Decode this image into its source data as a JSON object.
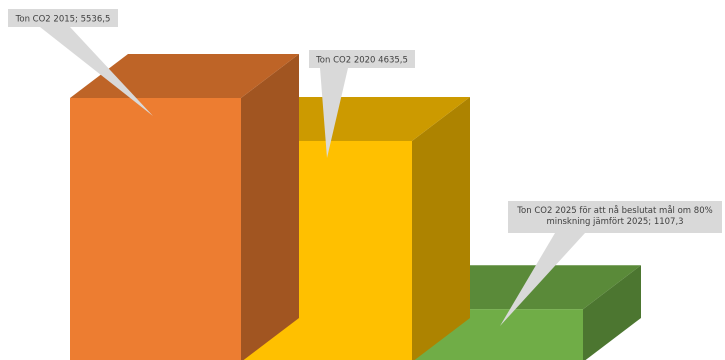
{
  "chart_data": {
    "type": "bar",
    "style": "3d-column",
    "categories": [
      "Ton CO2 2015",
      "Ton CO2 2020",
      "Ton CO2 2025 för att nå beslutat mål om 80% minskning jämfört 2025"
    ],
    "values": [
      5536.5,
      4635.5,
      1107.3
    ],
    "data_labels": [
      "Ton CO2 2015; 5536,5",
      "Ton CO2 2020 4635,5",
      "Ton CO2 2025 för att nå beslutat mål om 80% minskning jämfört 2025; 1107,3"
    ],
    "colors": {
      "bar_1": "#ED7D31",
      "bar_2": "#FFC000",
      "bar_3": "#70AD47",
      "callout_fill": "#D9D9D9",
      "label_text": "#404040"
    },
    "title": "",
    "xlabel": "",
    "ylabel": "",
    "legend": "none",
    "grid": false
  }
}
